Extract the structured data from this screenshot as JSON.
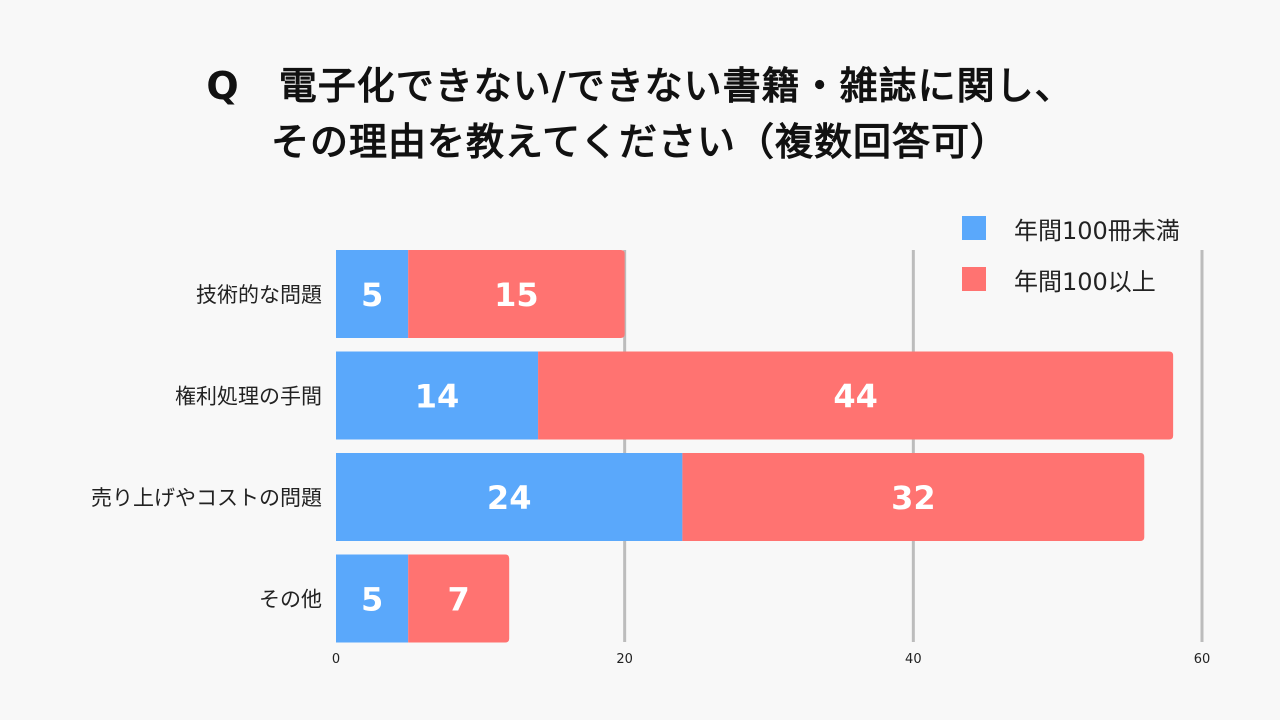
{
  "title_lines": [
    "Q　電子化できない/できない書籍・雑誌に関し、",
    "その理由を教えてください（複数回答可）"
  ],
  "colors": {
    "series1": "#5aa8fb",
    "series2": "#ff7371",
    "grid": "#bcbcbc",
    "axis_text": "#222222",
    "bar_text": "#ffffff"
  },
  "chart_data": {
    "type": "bar",
    "orientation": "horizontal",
    "stacked": true,
    "categories": [
      "技術的な問題",
      "権利処理の手間",
      "売り上げやコストの問題",
      "その他"
    ],
    "series": [
      {
        "name": "年間100冊未満",
        "values": [
          5,
          14,
          24,
          5
        ]
      },
      {
        "name": "年間100以上",
        "values": [
          15,
          44,
          32,
          7
        ]
      }
    ],
    "xlim": [
      0,
      60
    ],
    "xticks": [
      "0",
      "20",
      "40",
      "60"
    ],
    "grid": true,
    "legend": "top-right",
    "data_labels": true
  }
}
